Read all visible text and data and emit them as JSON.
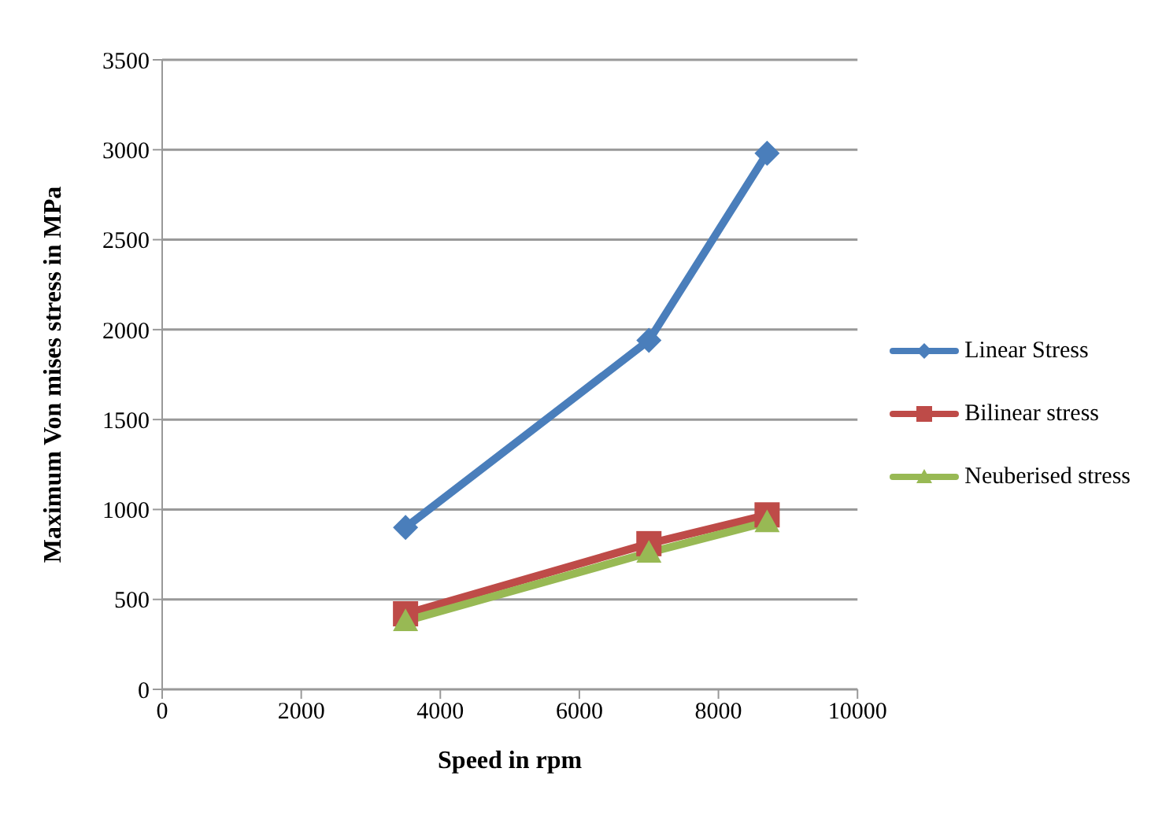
{
  "chart_data": {
    "type": "line",
    "xlabel": "Speed in rpm",
    "ylabel": "Maximum Von mises stress in MPa",
    "x": [
      3500,
      7000,
      8700
    ],
    "series": [
      {
        "name": "Linear Stress",
        "color": "#4a7ebb",
        "values": [
          900,
          1940,
          2980
        ],
        "marker": "diamond"
      },
      {
        "name": "Bilinear stress",
        "color": "#be4b48",
        "values": [
          420,
          810,
          970
        ],
        "marker": "square"
      },
      {
        "name": "Neuberised stress",
        "color": "#98b954",
        "values": [
          380,
          760,
          930
        ],
        "marker": "triangle"
      }
    ],
    "xlim": [
      0,
      10000
    ],
    "xticks": [
      0,
      2000,
      4000,
      6000,
      8000,
      10000
    ],
    "ylim": [
      0,
      3500
    ],
    "yticks": [
      0,
      500,
      1000,
      1500,
      2000,
      2500,
      3000,
      3500
    ],
    "grid": "y",
    "legend": "right"
  }
}
